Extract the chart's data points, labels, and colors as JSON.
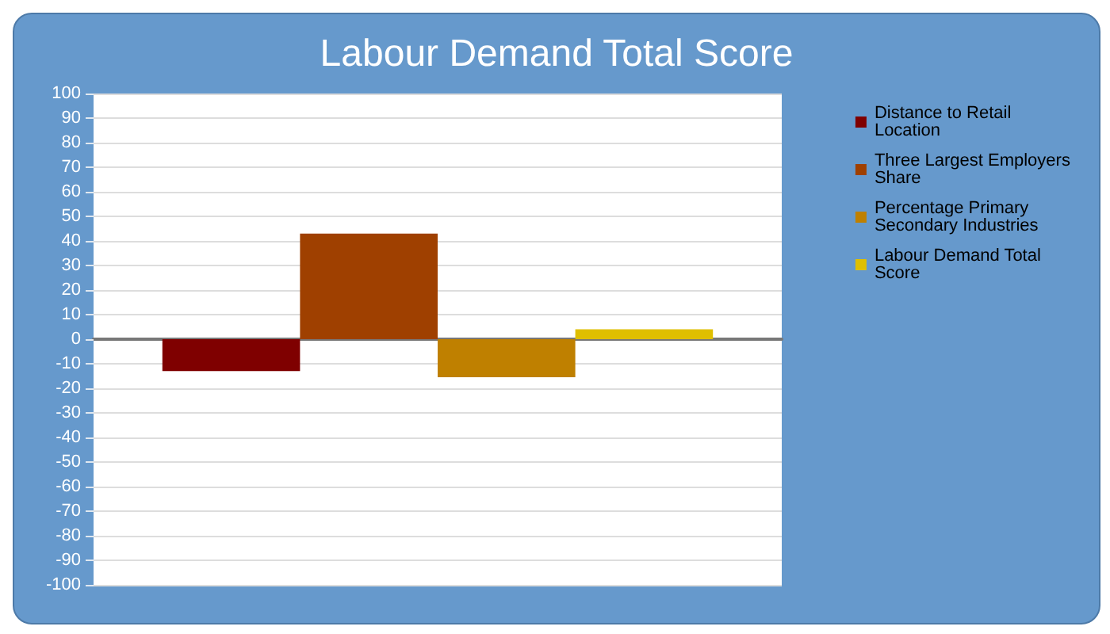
{
  "chart_data": {
    "type": "bar",
    "title": "Labour Demand Total Score",
    "categories": [
      null
    ],
    "series": [
      {
        "name": "Distance to Retail Location",
        "color": "#7f0000",
        "values": [
          -13
        ]
      },
      {
        "name": "Three Largest Employers Share",
        "color": "#9f4000",
        "values": [
          43
        ]
      },
      {
        "name": "Percentage Primary Secondary Industries",
        "color": "#bf8000",
        "values": [
          -15.5
        ]
      },
      {
        "name": "Labour Demand Total Score",
        "color": "#dfbf00",
        "values": [
          4
        ]
      }
    ],
    "ylim": [
      -100,
      100
    ],
    "yticks": [
      -100,
      -90,
      -80,
      -70,
      -60,
      -50,
      -40,
      -30,
      -20,
      -10,
      0,
      10,
      20,
      30,
      40,
      50,
      60,
      70,
      80,
      90,
      100
    ],
    "grid": "y",
    "legend": "right"
  }
}
